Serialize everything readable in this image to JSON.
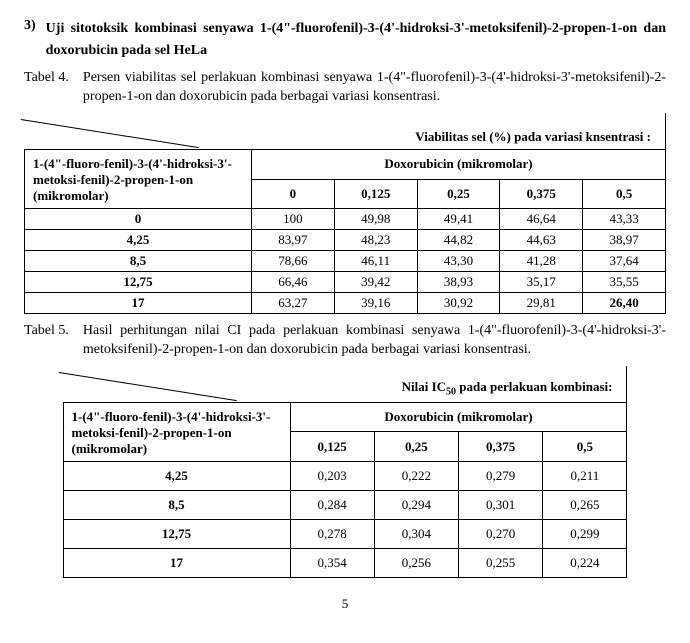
{
  "section": {
    "num": "3)",
    "title": "Uji sitotoksik kombinasi senyawa 1-(4\"-fluorofenil)-3-(4'-hidroksi-3'-metoksifenil)-2-propen-1-on dan doxorubicin pada sel HeLa"
  },
  "table4": {
    "caption_label": "Tabel 4.",
    "caption_text": "Persen viabilitas sel perlakuan kombinasi senyawa 1-(4\"-fluorofenil)-3-(4'-hidroksi-3'-metoksifenil)-2-propen-1-on dan doxorubicin pada berbagai variasi konsentrasi.",
    "diag_header": "Viabilitas sel (%) pada variasi knsentrasi :",
    "row_header": "1-(4\"-fluoro-fenil)-3-(4'-hidroksi-3'-metoksi-fenil)-2-propen-1-on (mikromolar)",
    "col_group_header": "Doxorubicin (mikromolar)",
    "col_labels": [
      "0",
      "0,125",
      "0,25",
      "0,375",
      "0,5"
    ],
    "rows": [
      {
        "label": "0",
        "vals": [
          "100",
          "49,98",
          "49,41",
          "46,64",
          "43,33"
        ]
      },
      {
        "label": "4,25",
        "vals": [
          "83,97",
          "48,23",
          "44,82",
          "44,63",
          "38,97"
        ]
      },
      {
        "label": "8,5",
        "vals": [
          "78,66",
          "46,11",
          "43,30",
          "41,28",
          "37,64"
        ]
      },
      {
        "label": "12,75",
        "vals": [
          "66,46",
          "39,42",
          "38,93",
          "35,17",
          "35,55"
        ]
      },
      {
        "label": "17",
        "vals": [
          "63,27",
          "39,16",
          "30,92",
          "29,81",
          "26,40"
        ],
        "bold_last": true
      }
    ]
  },
  "table5": {
    "caption_label": "Tabel 5.",
    "caption_text": "Hasil perhitungan nilai CI pada perlakuan kombinasi senyawa 1-(4\"-fluorofenil)-3-(4'-hidroksi-3'-metoksifenil)-2-propen-1-on dan doxorubicin pada berbagai variasi konsentrasi.",
    "diag_header_pre": "Nilai IC",
    "diag_header_sub": "50",
    "diag_header_post": " pada perlakuan kombinasi:",
    "row_header": "1-(4\"-fluoro-fenil)-3-(4'-hidroksi-3'-metoksi-fenil)-2-propen-1-on (mikromolar)",
    "col_group_header": "Doxorubicin (mikromolar)",
    "col_labels": [
      "0,125",
      "0,25",
      "0,375",
      "0,5"
    ],
    "rows": [
      {
        "label": "4,25",
        "vals": [
          "0,203",
          "0,222",
          "0,279",
          "0,211"
        ]
      },
      {
        "label": "8,5",
        "vals": [
          "0,284",
          "0,294",
          "0,301",
          "0,265"
        ]
      },
      {
        "label": "12,75",
        "vals": [
          "0,278",
          "0,304",
          "0,270",
          "0,299"
        ]
      },
      {
        "label": "17",
        "vals": [
          "0,354",
          "0,256",
          "0,255",
          "0,224"
        ]
      }
    ]
  },
  "page_number": "5"
}
